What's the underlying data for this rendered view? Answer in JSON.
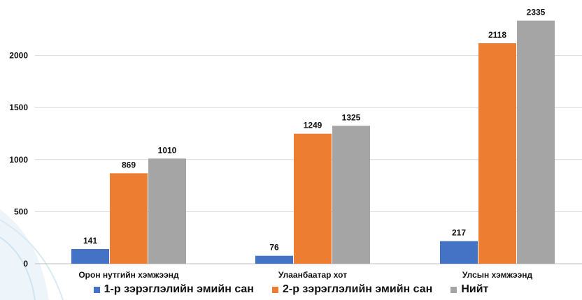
{
  "chart_data": {
    "type": "bar",
    "categories": [
      "Орон нутгийн хэмжээнд",
      "Улаанбаатар хот",
      "Улсын хэмжээнд"
    ],
    "series": [
      {
        "name": "1-р зэрэглэлийн эмийн сан",
        "values": [
          141,
          76,
          217
        ],
        "color": "#4472c4"
      },
      {
        "name": "2-р зэрэглэлийн эмийн сан",
        "values": [
          869,
          1249,
          2118
        ],
        "color": "#ed7d31"
      },
      {
        "name": "Нийт",
        "values": [
          1010,
          1325,
          2335
        ],
        "color": "#a5a5a5"
      }
    ],
    "title": "",
    "xlabel": "",
    "ylabel": "",
    "ylim": [
      0,
      2500
    ],
    "yticks": [
      0,
      500,
      1000,
      1500,
      2000
    ],
    "grid": true,
    "legend_position": "bottom"
  }
}
